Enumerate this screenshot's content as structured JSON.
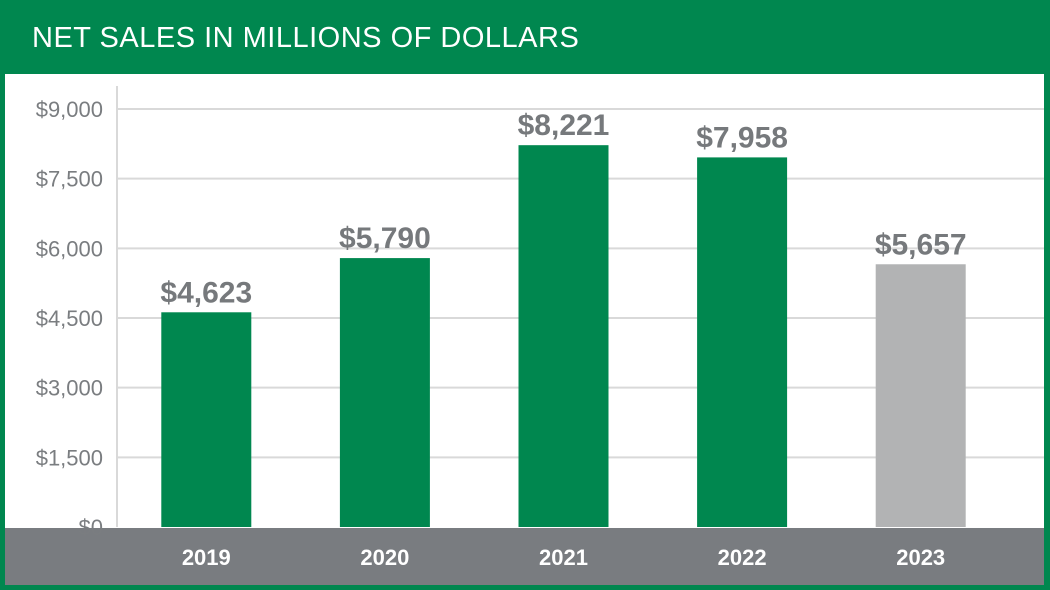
{
  "chart_data": {
    "type": "bar",
    "title": "NET SALES IN MILLIONS OF DOLLARS",
    "categories": [
      "2019",
      "2020",
      "2021",
      "2022",
      "2023"
    ],
    "values": [
      4623,
      5790,
      8221,
      7958,
      5657
    ],
    "data_labels": [
      "$4,623",
      "$5,790",
      "$8,221",
      "$7,958",
      "$5,657"
    ],
    "ylim": [
      0,
      9000
    ],
    "yticks": [
      0,
      1500,
      3000,
      4500,
      6000,
      7500,
      9000
    ],
    "ytick_labels": [
      "$0",
      "$1,500",
      "$3,000",
      "$4,500",
      "$6,000",
      "$7,500",
      "$9,000"
    ],
    "xlabel": "",
    "ylabel": "",
    "grid": true,
    "legend": "none"
  },
  "colors": {
    "frame": "#00874f",
    "bar": "#00874f",
    "bar_highlight": "#b2b3b4",
    "axis_band": "#797c80",
    "grid": "#d9d9d9",
    "label": "#76797c"
  }
}
